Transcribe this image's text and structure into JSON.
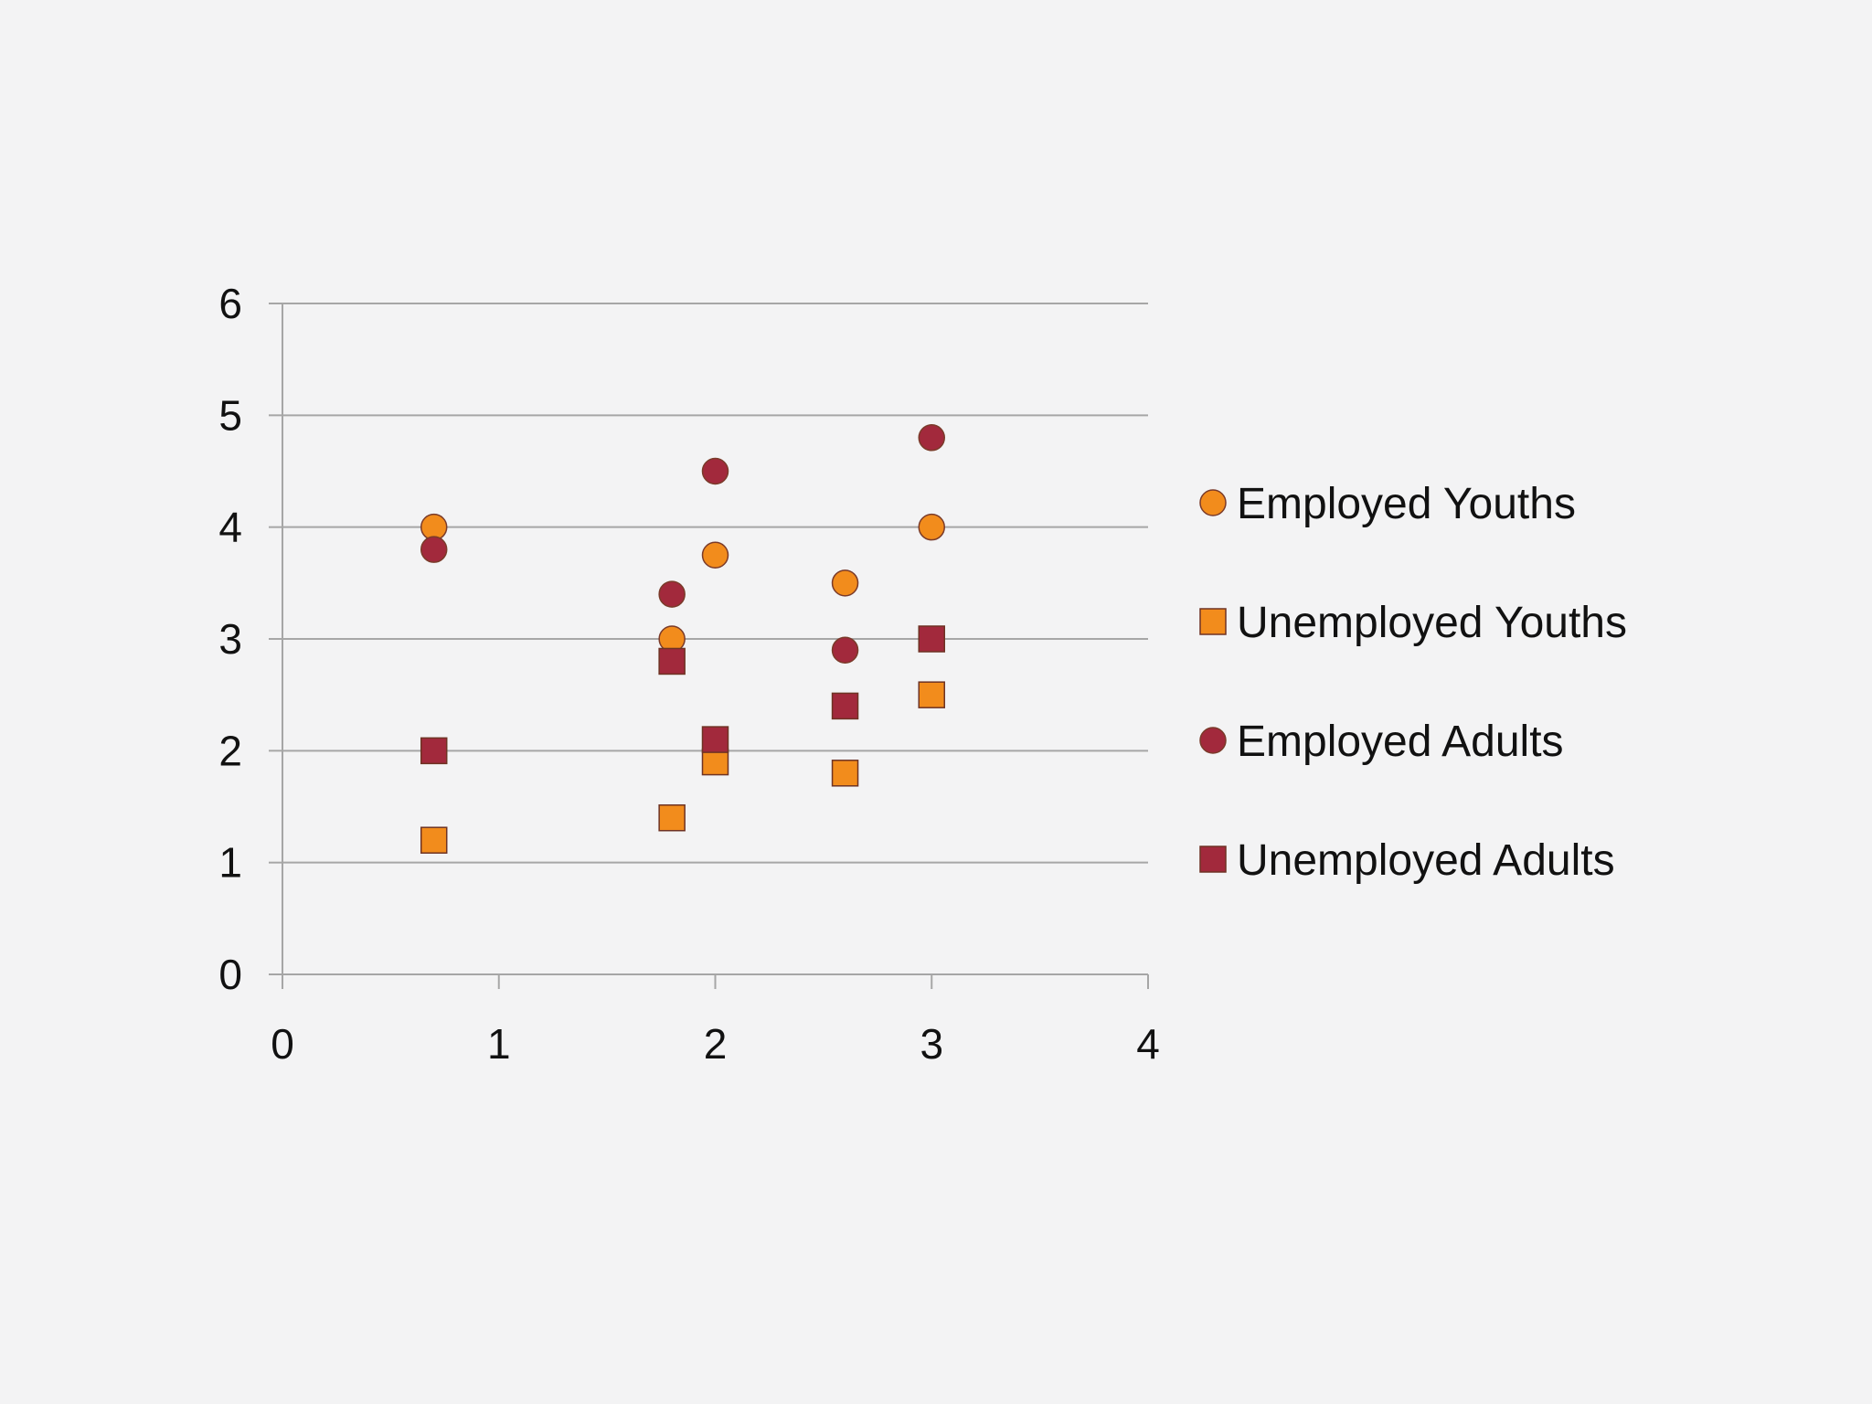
{
  "chart_data": {
    "type": "scatter",
    "title": "",
    "xlabel": "",
    "ylabel": "",
    "xlim": [
      0,
      4
    ],
    "ylim": [
      0,
      6
    ],
    "x_ticks": [
      0,
      1,
      2,
      3,
      4
    ],
    "y_ticks": [
      0,
      1,
      2,
      3,
      4,
      5,
      6
    ],
    "grid": "horizontal",
    "legend": "right",
    "series": [
      {
        "name": "Employed Youths",
        "marker": "circle",
        "color": "#f28c1c",
        "points": [
          [
            0.7,
            4.0
          ],
          [
            1.8,
            3.0
          ],
          [
            2.0,
            3.75
          ],
          [
            2.6,
            3.5
          ],
          [
            3.0,
            4.0
          ]
        ]
      },
      {
        "name": "Unemployed Youths",
        "marker": "square",
        "color": "#f28c1c",
        "points": [
          [
            0.7,
            1.2
          ],
          [
            1.8,
            1.4
          ],
          [
            2.0,
            1.9
          ],
          [
            2.6,
            1.8
          ],
          [
            3.0,
            2.5
          ]
        ]
      },
      {
        "name": "Employed Adults",
        "marker": "circle",
        "color": "#a2293c",
        "points": [
          [
            0.7,
            3.8
          ],
          [
            1.8,
            3.4
          ],
          [
            2.0,
            4.5
          ],
          [
            2.6,
            2.9
          ],
          [
            3.0,
            4.8
          ]
        ]
      },
      {
        "name": "Unemployed Adults",
        "marker": "square",
        "color": "#a2293c",
        "points": [
          [
            0.7,
            2.0
          ],
          [
            1.8,
            2.8
          ],
          [
            2.0,
            2.1
          ],
          [
            2.6,
            2.4
          ],
          [
            3.0,
            3.0
          ]
        ]
      }
    ]
  }
}
